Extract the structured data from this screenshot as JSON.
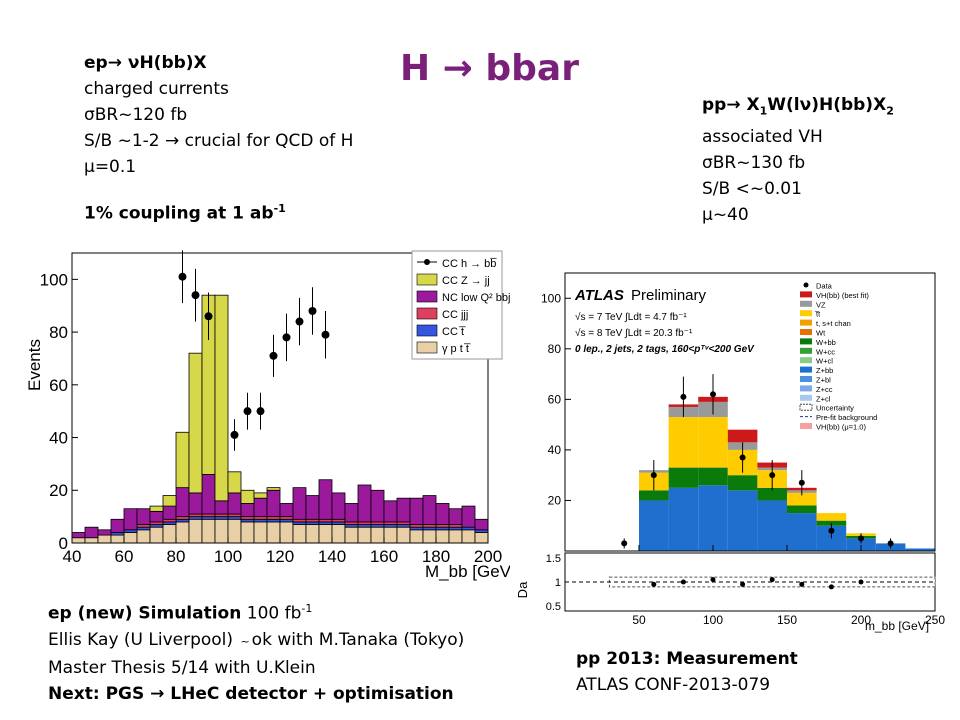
{
  "title": "H → bbar",
  "ep_block": {
    "line1": "ep→ νH(bb)X",
    "line2": "charged currents",
    "line3": "σBR~120 fb",
    "line4": "S/B ~1-2 → crucial for QCD of H",
    "line5": "μ=0.1",
    "coupling_text": "1% coupling at 1 ab",
    "coupling_sup": "-1"
  },
  "pp_block": {
    "line1_pre": "pp→ X",
    "line1_s1": "1",
    "line1_mid": "W(lν)H(bb)X",
    "line1_s2": "2",
    "line2": "associated VH",
    "line3": "σBR~130 fb",
    "line4": "S/B <~0.01",
    "line5": "μ~40"
  },
  "ep_caption": {
    "line1_bold": "ep (new) Simulation",
    "line1_rest": " 100 fb",
    "line1_sup": "-1",
    "line2_a": "Ellis Kay (U Liverpool)",
    "line2_tilde": "~",
    "line2_b": "ok with M.Tanaka (Tokyo)",
    "line3": "Master Thesis 5/14 with U.Klein",
    "line4": "Next: PGS → LHeC detector + optimisation"
  },
  "pp_caption": {
    "line1": "pp 2013: Measurement",
    "line2": "ATLAS CONF-2013-079"
  },
  "colors": {
    "title": "#7a1f7a",
    "cc_zjj": "#d7d74a",
    "nc_lowq2": "#9b1a9b",
    "cc_jjj": "#e04060",
    "cct": "#3355e0",
    "gamma_ptt": "#e8cfa5",
    "zbb": "#1f6fcf",
    "wbb": "#0a7a0a",
    "ttbar": "#ffcc00",
    "vz": "#999999",
    "vh": "#cc1a1a"
  },
  "chart_data": [
    {
      "type": "bar",
      "stacked": true,
      "xlabel": "M_bb [GeV]",
      "ylabel": "Events",
      "xlim": [
        40,
        200
      ],
      "ylim": [
        0,
        110
      ],
      "x_ticks": [
        40,
        60,
        80,
        100,
        120,
        140,
        160,
        180,
        200
      ],
      "y_ticks": [
        0,
        20,
        40,
        60,
        80,
        100
      ],
      "bin_edges": [
        40,
        45,
        50,
        55,
        60,
        65,
        70,
        75,
        80,
        85,
        90,
        95,
        100,
        105,
        110,
        115,
        120,
        125,
        130,
        135,
        140,
        145,
        150,
        155,
        160,
        165,
        170,
        175,
        180,
        185,
        190,
        195,
        200
      ],
      "series": [
        {
          "name": "γ p t t̅",
          "color": "#e8cfa5",
          "values": [
            2,
            2,
            3,
            3,
            4,
            5,
            6,
            7,
            8,
            9,
            9,
            9,
            9,
            8,
            8,
            8,
            8,
            7,
            7,
            7,
            7,
            6,
            6,
            6,
            6,
            6,
            5,
            5,
            5,
            5,
            5,
            4
          ]
        },
        {
          "name": "CC t̅",
          "color": "#3355e0",
          "values": [
            0,
            0,
            0,
            1,
            1,
            1,
            1,
            1,
            1,
            1,
            1,
            1,
            1,
            1,
            1,
            1,
            1,
            1,
            1,
            1,
            1,
            1,
            1,
            1,
            1,
            1,
            1,
            1,
            1,
            1,
            1,
            1
          ]
        },
        {
          "name": "CC jjj",
          "color": "#e04060",
          "values": [
            0,
            0,
            0,
            0,
            0,
            1,
            1,
            1,
            1,
            1,
            1,
            1,
            1,
            1,
            1,
            1,
            1,
            1,
            1,
            1,
            1,
            1,
            1,
            1,
            1,
            1,
            1,
            1,
            1,
            1,
            0,
            0
          ]
        },
        {
          "name": "NC low Q² bbj",
          "color": "#9b1a9b",
          "values": [
            2,
            4,
            2,
            5,
            8,
            6,
            4,
            5,
            11,
            8,
            15,
            5,
            8,
            5,
            7,
            10,
            5,
            12,
            9,
            15,
            10,
            7,
            14,
            12,
            8,
            9,
            10,
            11,
            8,
            6,
            8,
            4
          ]
        },
        {
          "name": "CC Z → jj",
          "color": "#d7d74a",
          "values": [
            0,
            0,
            0,
            0,
            0,
            0,
            2,
            4,
            21,
            53,
            68,
            78,
            8,
            5,
            2,
            1,
            0,
            0,
            0,
            0,
            0,
            0,
            0,
            0,
            0,
            0,
            0,
            0,
            0,
            0,
            0,
            0
          ]
        }
      ],
      "points": {
        "name": "CC h → bb̅",
        "x": [
          82.5,
          87.5,
          92.5,
          102.5,
          107.5,
          112.5,
          117.5,
          122.5,
          127.5,
          132.5,
          137.5
        ],
        "y": [
          101,
          94,
          86,
          41,
          50,
          50,
          71,
          78,
          84,
          88,
          79
        ],
        "yerr": [
          10,
          10,
          9,
          6,
          7,
          7,
          8,
          9,
          9,
          9,
          9
        ]
      },
      "legend": [
        "CC h → bb̅",
        "CC Z → jj",
        "NC low Q² bbj",
        "CC jjj",
        "CC t̅",
        "γ p t t̅"
      ],
      "legend_position": "top-right"
    },
    {
      "type": "bar",
      "stacked": true,
      "xlabel": "m_bb [GeV]",
      "ylabel": "",
      "xlim": [
        0,
        250
      ],
      "ylim": [
        0,
        110
      ],
      "x_ticks": [
        50,
        100,
        150,
        200,
        250
      ],
      "y_ticks": [
        20,
        40,
        60,
        80,
        100
      ],
      "atlas_label": "ATLAS",
      "atlas_sub": "Preliminary",
      "info_lines": [
        "√s = 7 TeV ∫Ldt = 4.7 fb⁻¹",
        "√s = 8 TeV ∫Ldt = 20.3 fb⁻¹",
        "0 lep., 2 jets, 2 tags, 160<pᵀᵛ<200 GeV"
      ],
      "bin_edges": [
        30,
        50,
        70,
        90,
        110,
        130,
        150,
        170,
        190,
        210,
        230,
        250
      ],
      "series": [
        {
          "name": "Z+bb",
          "color": "#1f6fcf",
          "values": [
            0,
            20,
            25,
            26,
            24,
            20,
            15,
            10,
            5,
            3,
            1
          ]
        },
        {
          "name": "W+bb",
          "color": "#0a7a0a",
          "values": [
            0,
            4,
            8,
            7,
            6,
            5,
            3,
            2,
            1,
            0,
            0
          ]
        },
        {
          "name": "t̅t",
          "color": "#ffcc00",
          "values": [
            0,
            7,
            20,
            20,
            10,
            7,
            5,
            3,
            1,
            0,
            0
          ]
        },
        {
          "name": "VZ",
          "color": "#999999",
          "values": [
            0,
            1,
            4,
            6,
            3,
            1,
            1,
            0,
            0,
            0,
            0
          ]
        },
        {
          "name": "VH(bb) (best fit)",
          "color": "#cc1a1a",
          "values": [
            0,
            0,
            1,
            2,
            5,
            2,
            1,
            0,
            0,
            0,
            0
          ]
        }
      ],
      "points": {
        "name": "Data",
        "x": [
          40,
          60,
          80,
          100,
          120,
          140,
          160,
          180,
          200,
          220
        ],
        "y": [
          3,
          30,
          61,
          62,
          37,
          30,
          27,
          8,
          5,
          3
        ],
        "yerr": [
          2,
          6,
          8,
          8,
          6,
          6,
          5,
          3,
          2,
          2
        ]
      },
      "legend": [
        "Data",
        "VH(bb) (best fit)",
        "VZ",
        "t̅t",
        "t, s+t chan",
        "Wt",
        "W+bb",
        "W+cc",
        "W+cl",
        "Z+bb",
        "Z+bl",
        "Z+cc",
        "Z+cl",
        "Uncertainty",
        "Pre-fit background",
        "VH(bb) (μ=1.0)"
      ],
      "legend_position": "top-right",
      "ratio_panel": {
        "ylabel": "Da",
        "y_ticks": [
          0.5,
          1,
          1.5
        ],
        "x": [
          60,
          80,
          100,
          120,
          140,
          160,
          180,
          200
        ],
        "y": [
          0.95,
          1.0,
          1.05,
          0.95,
          1.05,
          0.95,
          0.9,
          1.0
        ]
      }
    }
  ]
}
